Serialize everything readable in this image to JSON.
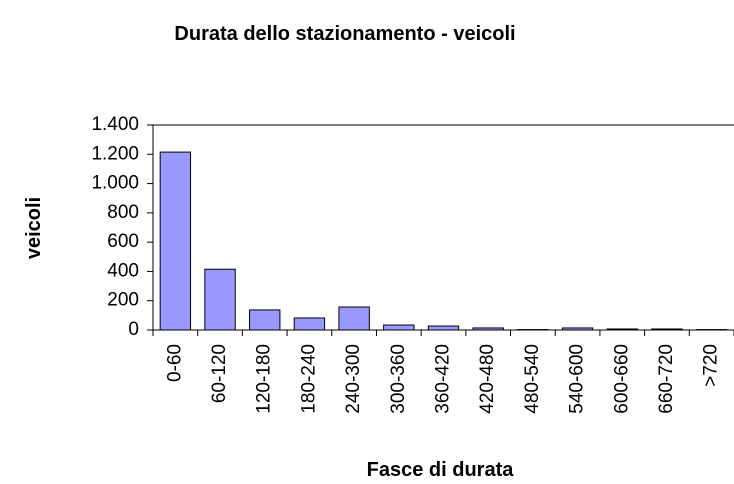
{
  "chart_data": {
    "type": "bar",
    "title": "Durata dello stazionamento - veicoli",
    "x_label": "Fasce di durata",
    "y_label": "veicoli",
    "categories": [
      "0-60",
      "60-120",
      "120-180",
      "180-240",
      "240-300",
      "300-360",
      "360-420",
      "420-480",
      "480-540",
      "540-600",
      "600-660",
      "660-720",
      ">720"
    ],
    "values": [
      1215,
      415,
      137,
      82,
      157,
      34,
      27,
      14,
      3,
      14,
      7,
      7,
      3
    ],
    "color": "#9999ff",
    "ylim": [
      0,
      1400
    ],
    "yticks": [
      0,
      200,
      400,
      600,
      800,
      {
        "value": 1000,
        "label": "1.000"
      },
      {
        "value": 1200,
        "label": "1.200"
      },
      {
        "value": 1400,
        "label": "1.400"
      }
    ],
    "grid": false
  }
}
